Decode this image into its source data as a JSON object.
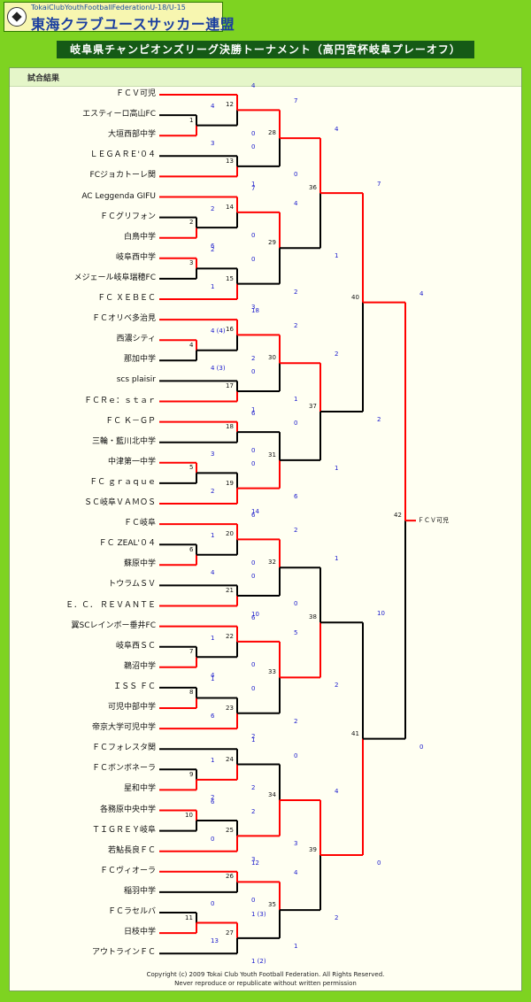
{
  "header": {
    "logo_small": "TokaiClubYouthFootballFederationU-18/U-15",
    "logo_big": "東海クラブユースサッカー連盟",
    "title": "岐阜県チャンピオンズリーグ決勝トーナメント（高円宮杯岐阜プレーオフ）"
  },
  "section_label": "試合結果",
  "colors": {
    "win_line": "#ff0000",
    "loss_line": "#000000",
    "score_text": "#1a1acc",
    "background": "#7ed321"
  },
  "teams": [
    "ＦＣＶ可児",
    "エスティーロ高山FC",
    "大垣西部中学",
    "ＬＥＧＡＲＥ'０４",
    "FCジョカトーレ関",
    "AC Leggenda GIFU",
    "ＦＣグリフォン",
    "白鳥中学",
    "岐阜西中学",
    "メジェール岐阜瑞穂FC",
    "ＦＣ ＸＥＢＥＣ",
    "ＦＣオリベ多治見",
    "西濃シティ",
    "那加中学",
    "scs plaisir",
    "ＦＣＲｅ：ｓｔａｒ",
    "ＦＣ Ｋ－ＧＰ",
    "三輪・藍川北中学",
    "中津第一中学",
    "ＦＣ ｇｒａｑｕｅ",
    "ＳＣ岐阜ＶＡＭＯＳ",
    "ＦＣ岐阜",
    "ＦＣ ZEAL'０４",
    "蘇原中学",
    "トウラムＳＶ",
    "Ｅ．Ｃ． ＲＥＶＡＮＴＥ",
    "翼SCレインボー垂井FC",
    "岐阜西ＳＣ",
    "鵜沼中学",
    "ＩＳＳ ＦＣ",
    "可児中部中学",
    "帝京大学可児中学",
    "ＦＣフォレスタ関",
    "ＦＣボンボネーラ",
    "星和中学",
    "各務原中央中学",
    "ＴＩＧＲＥＹ岐阜",
    "若鮎長良ＦＣ",
    "ＦＣヴィオーラ",
    "稲羽中学",
    "ＦＣラセルバ",
    "日枝中学",
    "アウトラインＦＣ"
  ],
  "matches": {
    "m1": {
      "num": "1",
      "s_top": "4",
      "s_bot": "3"
    },
    "m2": {
      "num": "2",
      "s_top": "2",
      "s_bot": "6"
    },
    "m3": {
      "num": "3",
      "s_top": "2",
      "s_bot": "1"
    },
    "m4": {
      "num": "4",
      "s_top": "4 (4)",
      "s_bot": "4 (3)"
    },
    "m5": {
      "num": "5",
      "s_top": "3",
      "s_bot": "2"
    },
    "m6": {
      "num": "6",
      "s_top": "1",
      "s_bot": "4"
    },
    "m7": {
      "num": "7",
      "s_top": "1",
      "s_bot": "4"
    },
    "m8": {
      "num": "8",
      "s_top": "1",
      "s_bot": "6"
    },
    "m9": {
      "num": "9",
      "s_top": "1",
      "s_bot": "2"
    },
    "m10": {
      "num": "10",
      "s_top": "6",
      "s_bot": "0"
    },
    "m11": {
      "num": "11",
      "s_top": "0",
      "s_bot": "13"
    },
    "m12": {
      "num": "12",
      "s_top": "4",
      "s_bot": "0"
    },
    "m13": {
      "num": "13",
      "s_top": "0",
      "s_bot": "1"
    },
    "m14": {
      "num": "14",
      "s_top": "7",
      "s_bot": "0"
    },
    "m15": {
      "num": "15",
      "s_top": "0",
      "s_bot": "3"
    },
    "m16": {
      "num": "16",
      "s_top": "18",
      "s_bot": "2"
    },
    "m17": {
      "num": "17",
      "s_top": "0",
      "s_bot": "1"
    },
    "m18": {
      "num": "18",
      "s_top": "6",
      "s_bot": "0"
    },
    "m19": {
      "num": "19",
      "s_top": "0",
      "s_bot": "14"
    },
    "m20": {
      "num": "20",
      "s_top": "6",
      "s_bot": "0"
    },
    "m21": {
      "num": "21",
      "s_top": "0",
      "s_bot": "10"
    },
    "m22": {
      "num": "22",
      "s_top": "6",
      "s_bot": "0"
    },
    "m23": {
      "num": "23",
      "s_top": "0",
      "s_bot": "2"
    },
    "m24": {
      "num": "24",
      "s_top": "1",
      "s_bot": "2"
    },
    "m25": {
      "num": "25",
      "s_top": "2",
      "s_bot": "3"
    },
    "m26": {
      "num": "26",
      "s_top": "12",
      "s_bot": "0"
    },
    "m27": {
      "num": "27",
      "s_top": "1 (3)",
      "s_bot": "1 (2)"
    },
    "m28": {
      "num": "28",
      "s_top": "7",
      "s_bot": "0"
    },
    "m29": {
      "num": "29",
      "s_top": "4",
      "s_bot": "2"
    },
    "m30": {
      "num": "30",
      "s_top": "2",
      "s_bot": "1"
    },
    "m31": {
      "num": "31",
      "s_top": "0",
      "s_bot": "6"
    },
    "m32": {
      "num": "32",
      "s_top": "2",
      "s_bot": "0"
    },
    "m33": {
      "num": "33",
      "s_top": "5",
      "s_bot": "2"
    },
    "m34": {
      "num": "34",
      "s_top": "0",
      "s_bot": "3"
    },
    "m35": {
      "num": "35",
      "s_top": "4",
      "s_bot": "1"
    },
    "m36": {
      "num": "36",
      "s_top": "4",
      "s_bot": "1"
    },
    "m37": {
      "num": "37",
      "s_top": "2",
      "s_bot": "1"
    },
    "m38": {
      "num": "38",
      "s_top": "1",
      "s_bot": "2"
    },
    "m39": {
      "num": "39",
      "s_top": "4",
      "s_bot": "2"
    },
    "m40": {
      "num": "40",
      "s_top": "7",
      "s_bot": "2"
    },
    "m41": {
      "num": "41",
      "s_top": "10",
      "s_bot": "0"
    },
    "m42": {
      "num": "42",
      "s_top": "4",
      "s_bot": "0"
    }
  },
  "champion": "ＦＣＶ可児",
  "footer": {
    "line1": "Copyright (c) 2009 Tokai Club Youth Football Federation. All Rights Reserved.",
    "line2": "Never reproduce or republicate without written permission"
  }
}
